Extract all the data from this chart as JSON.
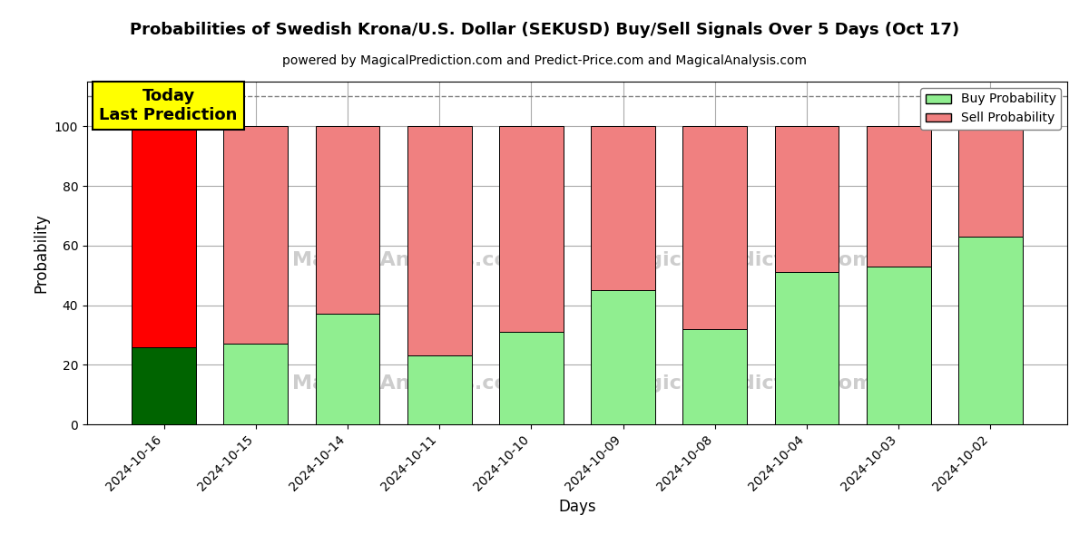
{
  "title": "Probabilities of Swedish Krona/U.S. Dollar (SEKUSD) Buy/Sell Signals Over 5 Days (Oct 17)",
  "subtitle": "powered by MagicalPrediction.com and Predict-Price.com and MagicalAnalysis.com",
  "xlabel": "Days",
  "ylabel": "Probability",
  "categories": [
    "2024-10-16",
    "2024-10-15",
    "2024-10-14",
    "2024-10-11",
    "2024-10-10",
    "2024-10-09",
    "2024-10-08",
    "2024-10-04",
    "2024-10-03",
    "2024-10-02"
  ],
  "buy_values": [
    26,
    27,
    37,
    23,
    31,
    45,
    32,
    51,
    53,
    63
  ],
  "sell_values": [
    74,
    73,
    63,
    77,
    69,
    55,
    68,
    49,
    47,
    37
  ],
  "buy_color_today": "#006400",
  "sell_color_today": "#ff0000",
  "buy_color_others": "#90ee90",
  "sell_color_others": "#f08080",
  "today_annotation": "Today\nLast Prediction",
  "dashed_line_y": 110,
  "ylim": [
    0,
    115
  ],
  "yticks": [
    0,
    20,
    40,
    60,
    80,
    100
  ],
  "legend_buy_label": "Buy Probability",
  "legend_sell_label": "Sell Probability",
  "background_color": "#ffffff",
  "grid_color": "#aaaaaa"
}
